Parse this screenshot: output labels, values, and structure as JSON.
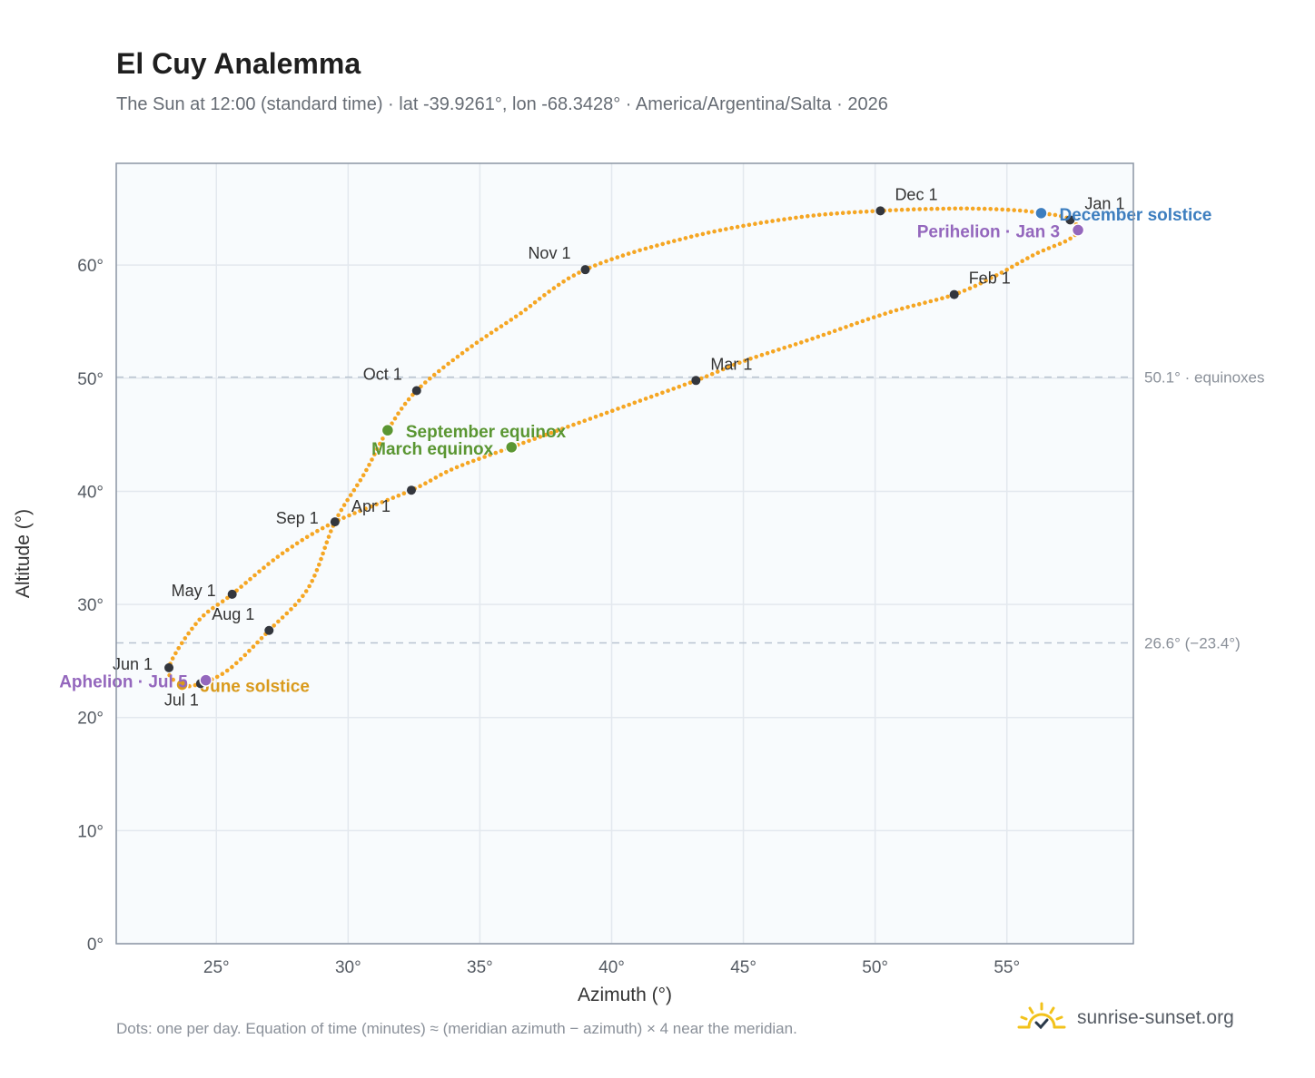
{
  "header": {
    "title": "El Cuy Analemma",
    "subtitle": "The Sun at 12:00 (standard time) · lat -39.9261°, lon -68.3428° · America/Argentina/Salta · 2026"
  },
  "footer": {
    "note": "Dots: one per day. Equation of time (minutes) ≈ (meridian azimuth − azimuth) × 4 near the meridian.",
    "brand": "sunrise-sunset.org",
    "brand_icon": "sun-logo-icon"
  },
  "colors": {
    "curve": "#f5a623",
    "month_marker": "#33363d",
    "equinox": "#5a9632",
    "june_solstice": "#d99a1c",
    "december_solstice": "#3d7ebf",
    "apsis": "#9467bd",
    "grid": "#e3e8ee",
    "plot_bg": "#f8fbfd",
    "frame": "#8b95a4",
    "ref_line": "#b8c3d0"
  },
  "chart_data": {
    "type": "scatter",
    "xlabel": "Azimuth (°)",
    "ylabel": "Altitude (°)",
    "xlim": [
      21.2,
      59.8
    ],
    "ylim": [
      0,
      69
    ],
    "xticks": [
      25,
      30,
      35,
      40,
      45,
      50,
      55
    ],
    "yticks": [
      0,
      10,
      20,
      30,
      40,
      50,
      60
    ],
    "tick_suffix": "°",
    "grid": true,
    "path_key": [
      [
        57.7,
        63.1
      ],
      [
        57.3,
        62.2
      ],
      [
        56.1,
        61.0
      ],
      [
        54.6,
        59.1
      ],
      [
        53.0,
        57.4
      ],
      [
        50.5,
        55.8
      ],
      [
        47.5,
        53.4
      ],
      [
        45.0,
        51.5
      ],
      [
        43.2,
        49.8
      ],
      [
        40.0,
        47.1
      ],
      [
        36.2,
        43.9
      ],
      [
        34.0,
        42.0
      ],
      [
        32.4,
        40.1
      ],
      [
        29.5,
        37.3
      ],
      [
        27.5,
        34.5
      ],
      [
        25.6,
        30.9
      ],
      [
        24.3,
        28.5
      ],
      [
        23.2,
        24.4
      ],
      [
        23.7,
        22.9
      ],
      [
        24.4,
        23.0
      ],
      [
        25.5,
        24.3
      ],
      [
        27.0,
        27.7
      ],
      [
        28.5,
        31.5
      ],
      [
        29.5,
        37.3
      ],
      [
        30.6,
        41.5
      ],
      [
        31.5,
        45.4
      ],
      [
        32.6,
        48.9
      ],
      [
        34.5,
        52.5
      ],
      [
        36.4,
        55.5
      ],
      [
        39.0,
        59.6
      ],
      [
        43.0,
        62.5
      ],
      [
        47.0,
        64.2
      ],
      [
        50.2,
        64.8
      ],
      [
        53.0,
        65.0
      ],
      [
        55.0,
        64.9
      ],
      [
        56.3,
        64.6
      ],
      [
        57.4,
        64.0
      ],
      [
        57.7,
        63.1
      ]
    ],
    "month_markers": [
      {
        "label": "Jan 1",
        "az": 57.4,
        "alt": 64.0,
        "anchor": "ne"
      },
      {
        "label": "Feb 1",
        "az": 53.0,
        "alt": 57.4,
        "anchor": "ne"
      },
      {
        "label": "Mar 1",
        "az": 43.2,
        "alt": 49.8,
        "anchor": "ne"
      },
      {
        "label": "Apr 1",
        "az": 32.4,
        "alt": 40.1,
        "anchor": "sw-offset"
      },
      {
        "label": "May 1",
        "az": 25.6,
        "alt": 30.9,
        "anchor": "sw"
      },
      {
        "label": "Jun 1",
        "az": 23.2,
        "alt": 24.4,
        "anchor": "sw"
      },
      {
        "label": "Jul 1",
        "az": 24.4,
        "alt": 23.0,
        "anchor": "s"
      },
      {
        "label": "Aug 1",
        "az": 27.0,
        "alt": 27.7,
        "anchor": "nw"
      },
      {
        "label": "Sep 1",
        "az": 29.5,
        "alt": 37.3,
        "anchor": "sw"
      },
      {
        "label": "Oct 1",
        "az": 32.6,
        "alt": 48.9,
        "anchor": "nw"
      },
      {
        "label": "Nov 1",
        "az": 39.0,
        "alt": 59.6,
        "anchor": "nw"
      },
      {
        "label": "Dec 1",
        "az": 50.2,
        "alt": 64.8,
        "anchor": "ne"
      }
    ],
    "events": [
      {
        "label": "September equinox",
        "az": 31.5,
        "alt": 45.4,
        "color": "#5a9632",
        "side": "right"
      },
      {
        "label": "March equinox",
        "az": 36.2,
        "alt": 43.9,
        "color": "#5a9632",
        "side": "left"
      },
      {
        "label": "June solstice",
        "az": 23.7,
        "alt": 22.9,
        "color": "#d99a1c",
        "side": "right"
      },
      {
        "label": "December solstice",
        "az": 56.3,
        "alt": 64.6,
        "color": "#3d7ebf",
        "side": "right"
      },
      {
        "label": "Perihelion · Jan 3",
        "az": 57.7,
        "alt": 63.1,
        "color": "#9467bd",
        "side": "left"
      },
      {
        "label": "Aphelion · Jul 5",
        "az": 24.6,
        "alt": 23.3,
        "color": "#9467bd",
        "side": "left"
      }
    ],
    "reference_lines": [
      {
        "alt": 50.1,
        "label": "50.1° · equinoxes"
      },
      {
        "alt": 26.6,
        "label": "26.6° (−23.4°)"
      }
    ]
  }
}
